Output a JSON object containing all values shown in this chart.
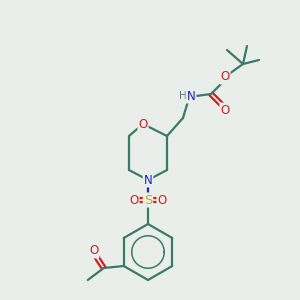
{
  "bg_color": "#eaeeea",
  "C": "#3a7a6a",
  "N": "#2020cc",
  "O": "#cc2020",
  "S": "#bbbb00",
  "H": "#607878",
  "bond_color": "#3a7a6a",
  "lw": 1.6,
  "fs": 8.5
}
